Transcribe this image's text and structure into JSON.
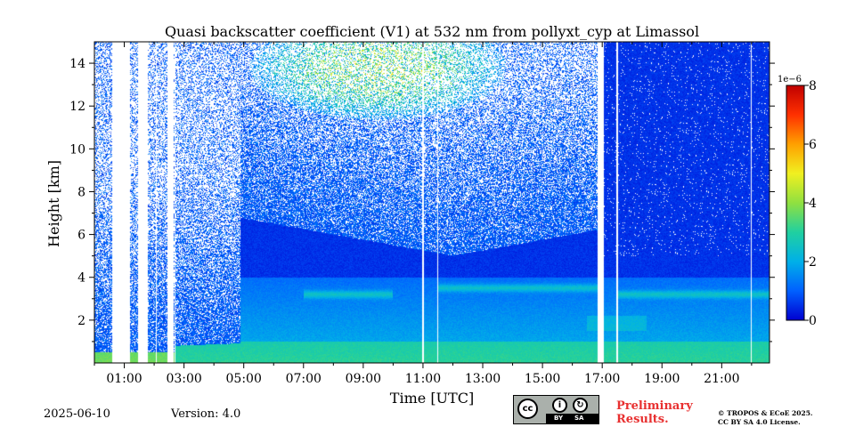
{
  "chart_data": {
    "type": "heatmap",
    "title": "Quasi backscatter coefficient (V1) at 532 nm from pollyxt_cyp at Limassol",
    "xlabel": "Time [UTC]",
    "ylabel": "Height [km]",
    "x_ticks": [
      "01:00",
      "03:00",
      "05:00",
      "07:00",
      "09:00",
      "11:00",
      "13:00",
      "15:00",
      "17:00",
      "19:00",
      "21:00"
    ],
    "x_tick_hours": [
      1,
      3,
      5,
      7,
      9,
      11,
      13,
      15,
      17,
      19,
      21
    ],
    "xlim_hours": [
      0,
      22.6
    ],
    "y_ticks": [
      2,
      4,
      6,
      8,
      10,
      12,
      14
    ],
    "ylim": [
      0,
      15
    ],
    "colorbar": {
      "ticks": [
        0,
        2,
        4,
        6,
        8
      ],
      "multiplier": "1e−6",
      "range": [
        0,
        8
      ],
      "colormap": "jet",
      "colors": [
        "#0000d0",
        "#0060ff",
        "#00b0e8",
        "#20d0a0",
        "#90e040",
        "#f0f020",
        "#ffa000",
        "#ff3000",
        "#c00000"
      ]
    },
    "no_data_color": "#ffffff",
    "data_gaps_hours": [
      [
        0.6,
        1.2
      ],
      [
        1.45,
        1.8
      ],
      [
        2.05,
        2.1
      ],
      [
        2.45,
        2.65
      ],
      [
        16.85,
        17.05
      ]
    ],
    "thin_gap_hours": [
      2.7,
      11.0,
      11.5,
      17.5,
      22.0
    ],
    "features": {
      "boundary_layer_top_km": [
        0.8,
        1.2
      ],
      "aerosol_layer_top_km": 4.0,
      "elevated_layer": [
        {
          "from_hour": 7.0,
          "to_hour": 10.0,
          "height_km": 3.2
        },
        {
          "from_hour": 11.5,
          "to_hour": 17.0,
          "height_km": 3.5
        },
        {
          "from_hour": 17.5,
          "to_hour": 22.6,
          "height_km": 3.2
        }
      ],
      "cirrus_max": {
        "hour": 9.5,
        "height_km": 13.8,
        "value_1e6": 7.0
      }
    }
  },
  "footer": {
    "date": "2025-06-10",
    "version": "Version: 4.0",
    "preliminary": "Preliminary\nResults.",
    "copyright_line1": "© TROPOS & ECoE 2025.",
    "copyright_line2": "CC BY SA 4.0 License.",
    "license_badge": {
      "cc": "cc",
      "by": "BY",
      "sa": "SA"
    }
  },
  "colors": {
    "preliminary_text": "#e83030",
    "axis": "#000000"
  }
}
